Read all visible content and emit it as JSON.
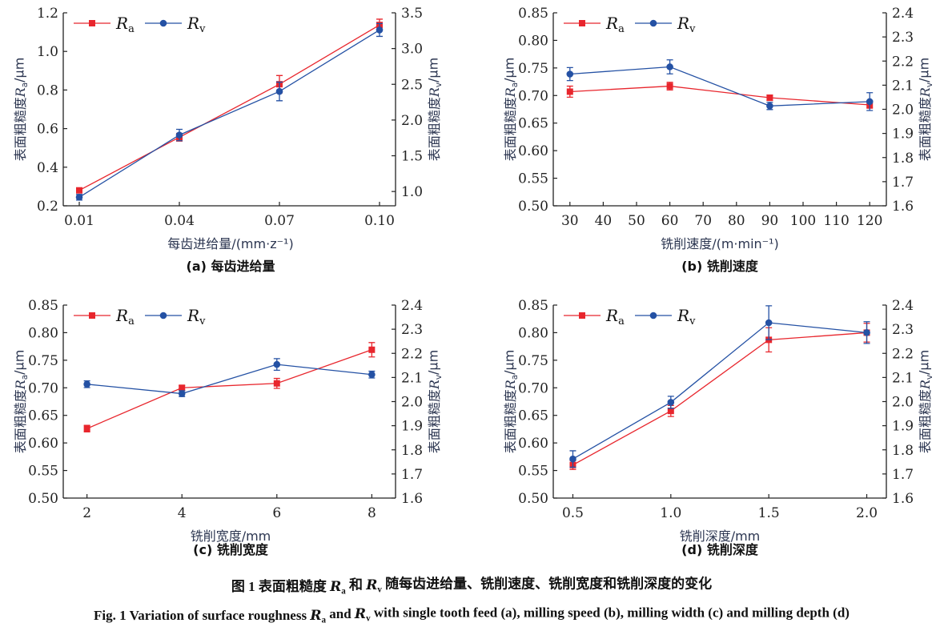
{
  "chart_data": [
    {
      "type": "line",
      "panel_title": "(a) 每齿进给量",
      "xlabel": "每齿进给量/(mm·z⁻¹)",
      "ylabel_left": "表面粗糙度Ra/μm",
      "ylabel_right": "表面粗糙度Rv/μm",
      "x": [
        0.01,
        0.04,
        0.07,
        0.1
      ],
      "xtick_labels": [
        "0.01",
        "0.04",
        "0.07",
        "0.10"
      ],
      "xlim": [
        0.0052,
        0.1048
      ],
      "ylim_left": [
        0.2,
        1.2
      ],
      "yticks_left": [
        "0.2",
        "0.4",
        "0.6",
        "0.8",
        "1.0",
        "1.2"
      ],
      "ylim_right": [
        0.8,
        3.5
      ],
      "yticks_right": [
        "1.0",
        "1.5",
        "2.0",
        "2.5",
        "3.0",
        "3.5"
      ],
      "legend_position": "top-left",
      "grid": false,
      "series": [
        {
          "name": "Ra",
          "axis": "left",
          "color": "#e8262d",
          "marker": "square",
          "values": [
            0.28,
            0.555,
            0.83,
            1.137
          ],
          "error": [
            0.01,
            0.02,
            0.045,
            0.03
          ]
        },
        {
          "name": "Rv",
          "axis": "right",
          "color": "#2451a4",
          "marker": "circle",
          "values": [
            0.92,
            1.79,
            2.4,
            3.26
          ],
          "error": [
            0.04,
            0.08,
            0.13,
            0.09
          ]
        }
      ]
    },
    {
      "type": "line",
      "panel_title": "(b) 铣削速度",
      "xlabel": "铣削速度/(m·min⁻¹)",
      "ylabel_left": "表面粗糙度Ra/μm",
      "ylabel_right": "表面粗糙度Rv/μm",
      "x": [
        30,
        60,
        90,
        120
      ],
      "xtick_values": [
        30,
        40,
        50,
        60,
        70,
        80,
        90,
        100,
        110,
        120
      ],
      "xtick_labels": [
        "30",
        "40",
        "50",
        "60",
        "70",
        "80",
        "90",
        "100",
        "110",
        "120"
      ],
      "xlim": [
        25,
        125
      ],
      "ylim_left": [
        0.5,
        0.85
      ],
      "yticks_left": [
        "0.50",
        "0.55",
        "0.60",
        "0.65",
        "0.70",
        "0.75",
        "0.80",
        "0.85"
      ],
      "ylim_right": [
        1.6,
        2.4
      ],
      "yticks_right": [
        "1.6",
        "1.7",
        "1.8",
        "1.9",
        "2.0",
        "2.1",
        "2.2",
        "2.3",
        "2.4"
      ],
      "legend_position": "top-left",
      "grid": false,
      "series": [
        {
          "name": "Ra",
          "axis": "left",
          "color": "#e8262d",
          "marker": "square",
          "values": [
            0.707,
            0.717,
            0.696,
            0.683
          ],
          "error": [
            0.01,
            0.007,
            0.005,
            0.006
          ]
        },
        {
          "name": "Rv",
          "axis": "right",
          "color": "#2451a4",
          "marker": "circle",
          "values": [
            2.146,
            2.176,
            2.014,
            2.032
          ],
          "error": [
            0.027,
            0.029,
            0.015,
            0.037
          ]
        }
      ]
    },
    {
      "type": "line",
      "panel_title": "(c) 铣削宽度",
      "xlabel": "铣削宽度/mm",
      "ylabel_left": "表面粗糙度Ra/μm",
      "ylabel_right": "表面粗糙度Rv/μm",
      "x": [
        2,
        4,
        6,
        8
      ],
      "xtick_labels": [
        "2",
        "4",
        "6",
        "8"
      ],
      "xlim": [
        1.5,
        8.5
      ],
      "ylim_left": [
        0.5,
        0.85
      ],
      "yticks_left": [
        "0.50",
        "0.55",
        "0.60",
        "0.65",
        "0.70",
        "0.75",
        "0.80",
        "0.85"
      ],
      "ylim_right": [
        1.6,
        2.4
      ],
      "yticks_right": [
        "1.6",
        "1.7",
        "1.8",
        "1.9",
        "2.0",
        "2.1",
        "2.2",
        "2.3",
        "2.4"
      ],
      "legend_position": "top-left",
      "grid": false,
      "series": [
        {
          "name": "Ra",
          "axis": "left",
          "color": "#e8262d",
          "marker": "square",
          "values": [
            0.626,
            0.7,
            0.708,
            0.769
          ],
          "error": [
            0.006,
            0.004,
            0.009,
            0.013
          ]
        },
        {
          "name": "Rv",
          "axis": "right",
          "color": "#2451a4",
          "marker": "circle",
          "values": [
            2.072,
            2.033,
            2.154,
            2.112
          ],
          "error": [
            0.014,
            0.012,
            0.024,
            0.014
          ]
        }
      ]
    },
    {
      "type": "line",
      "panel_title": "(d) 铣削深度",
      "xlabel": "铣削深度/mm",
      "ylabel_left": "表面粗糙度Ra/μm",
      "ylabel_right": "表面粗糙度Rv/μm",
      "x": [
        0.5,
        1.0,
        1.5,
        2.0
      ],
      "xtick_labels": [
        "0.5",
        "1.0",
        "1.5",
        "2.0"
      ],
      "xlim": [
        0.4,
        2.1
      ],
      "ylim_left": [
        0.5,
        0.85
      ],
      "yticks_left": [
        "0.50",
        "0.55",
        "0.60",
        "0.65",
        "0.70",
        "0.75",
        "0.80",
        "0.85"
      ],
      "ylim_right": [
        1.6,
        2.4
      ],
      "yticks_right": [
        "1.6",
        "1.7",
        "1.8",
        "1.9",
        "2.0",
        "2.1",
        "2.2",
        "2.3",
        "2.4"
      ],
      "legend_position": "top-left",
      "grid": false,
      "series": [
        {
          "name": "Ra",
          "axis": "left",
          "color": "#e8262d",
          "marker": "square",
          "values": [
            0.56,
            0.658,
            0.787,
            0.8
          ],
          "error": [
            0.008,
            0.01,
            0.022,
            0.017
          ]
        },
        {
          "name": "Rv",
          "axis": "right",
          "color": "#2451a4",
          "marker": "circle",
          "values": [
            1.762,
            1.997,
            2.327,
            2.286
          ],
          "error": [
            0.034,
            0.025,
            0.07,
            0.045
          ]
        }
      ]
    }
  ],
  "caption": {
    "zh": "图 1   表面粗糙度 Ra 和 Rv 随每齿进给量、铣削速度、铣削宽度和铣削深度的变化",
    "en": "Fig. 1    Variation of surface roughness Ra and Rv with single tooth feed (a), milling speed (b), milling width (c) and milling depth (d)"
  }
}
